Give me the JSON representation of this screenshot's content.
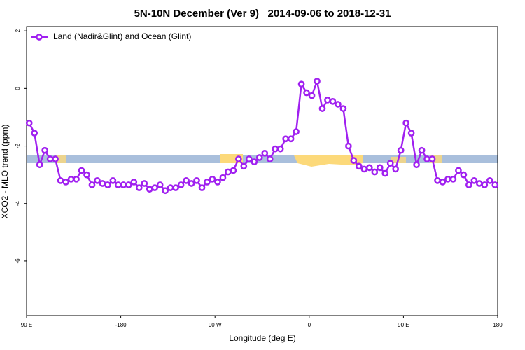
{
  "chart_data": {
    "type": "line",
    "title": "5N-10N December (Ver 9)   2014-09-06 to 2018-12-31",
    "xlabel": "Longitude (deg E)",
    "ylabel": "XCO2 - MLO trend (ppm)",
    "xlim": [
      -270,
      180
    ],
    "ylim": [
      -7.9,
      2.15
    ],
    "xticks": [
      {
        "value": -270,
        "label": "90 E"
      },
      -180,
      {
        "value": -90,
        "label": "90 W"
      },
      0,
      {
        "value": 90,
        "label": "90 E"
      },
      180
    ],
    "yticks": [
      -6,
      -4,
      -2,
      0,
      2
    ],
    "legend": "top-left",
    "x": [
      -267.5,
      -262.5,
      -257.5,
      -252.5,
      -247.5,
      -242.5,
      -237.5,
      -232.5,
      -227.5,
      -222.5,
      -217.5,
      -212.5,
      -207.5,
      -202.5,
      -197.5,
      -192.5,
      -187.5,
      -182.5,
      -177.5,
      -172.5,
      -167.5,
      -162.5,
      -157.5,
      -152.5,
      -147.5,
      -142.5,
      -137.5,
      -132.5,
      -127.5,
      -122.5,
      -117.5,
      -112.5,
      -107.5,
      -102.5,
      -97.5,
      -92.5,
      -87.5,
      -82.5,
      -77.5,
      -72.5,
      -67.5,
      -62.5,
      -57.5,
      -52.5,
      -47.5,
      -42.5,
      -37.5,
      -32.5,
      -27.5,
      -22.5,
      -17.5,
      -12.5,
      -7.5,
      -2.5,
      2.5,
      7.5,
      12.5,
      17.5,
      22.5,
      27.5,
      32.5,
      37.5,
      42.5,
      47.5,
      52.5,
      57.5,
      62.5,
      67.5,
      72.5,
      77.5,
      82.5,
      87.5,
      92.5,
      97.5,
      102.5,
      107.5,
      112.5,
      117.5,
      122.5,
      127.5,
      132.5,
      137.5,
      142.5,
      147.5,
      152.5,
      157.5,
      162.5,
      167.5,
      172.5,
      177.5
    ],
    "series": [
      {
        "name": "Land (Nadir&Glint) and Ocean (Glint)",
        "color": "#a020f0",
        "values": [
          -1.2,
          -1.55,
          -2.65,
          -2.15,
          -2.45,
          -2.45,
          -3.2,
          -3.25,
          -3.15,
          -3.15,
          -2.85,
          -3.0,
          -3.35,
          -3.2,
          -3.3,
          -3.35,
          -3.2,
          -3.35,
          -3.35,
          -3.35,
          -3.25,
          -3.45,
          -3.3,
          -3.5,
          -3.45,
          -3.35,
          -3.55,
          -3.45,
          -3.45,
          -3.35,
          -3.2,
          -3.3,
          -3.2,
          -3.45,
          -3.25,
          -3.15,
          -3.25,
          -3.1,
          -2.9,
          -2.85,
          -2.45,
          -2.7,
          -2.45,
          -2.55,
          -2.4,
          -2.25,
          -2.45,
          -2.1,
          -2.1,
          -1.75,
          -1.75,
          -1.5,
          0.15,
          -0.15,
          -0.25,
          0.25,
          -0.7,
          -0.4,
          -0.45,
          -0.55,
          -0.7,
          -2.0,
          -2.5,
          -2.7,
          -2.8,
          -2.75,
          -2.9,
          -2.75,
          -2.95,
          -2.6,
          -2.8,
          -2.15,
          -1.2,
          -1.55,
          -2.65,
          -2.15,
          -2.45,
          -2.45,
          -3.2,
          -3.25,
          -3.15,
          -3.15,
          -2.85,
          -3.0,
          -3.35,
          -3.2,
          -3.3,
          -3.35,
          -3.2,
          -3.35
        ]
      }
    ]
  }
}
